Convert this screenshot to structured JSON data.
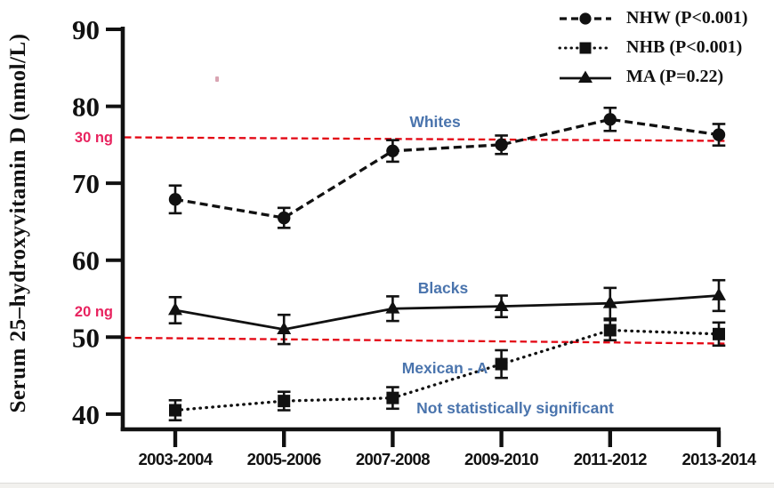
{
  "chart_data": {
    "type": "line",
    "title": "",
    "ylabel": "Serum 25–hydroxyvitamin D (nmol/L)",
    "xlabel": "",
    "ylim": [
      38,
      91
    ],
    "yticks": [
      90,
      80,
      70,
      60,
      50,
      40
    ],
    "grid": false,
    "legend_position": "top-right",
    "categories": [
      "2003-2004",
      "2005-2006",
      "2007-2008",
      "2009-2010",
      "2011-2012",
      "2013-2014"
    ],
    "series": [
      {
        "name": "NHW",
        "legend_label": "NHW (P<0.001)",
        "line_style": "dashed",
        "marker": "circle",
        "color": "#111111",
        "values": [
          67.9,
          65.5,
          74.2,
          75.0,
          78.3,
          76.3
        ],
        "errors": [
          1.8,
          1.3,
          1.4,
          1.2,
          1.5,
          1.4
        ]
      },
      {
        "name": "NHB",
        "legend_label": "NHB (P<0.001)",
        "line_style": "dotted",
        "marker": "square",
        "color": "#111111",
        "values": [
          40.5,
          41.7,
          42.1,
          46.5,
          50.9,
          50.4
        ],
        "errors": [
          1.3,
          1.2,
          1.4,
          1.8,
          1.3,
          1.5
        ]
      },
      {
        "name": "MA",
        "legend_label": "MA (P=0.22)",
        "line_style": "solid",
        "marker": "triangle",
        "color": "#111111",
        "values": [
          53.5,
          51.0,
          53.7,
          54.0,
          54.4,
          55.4
        ],
        "errors": [
          1.7,
          1.9,
          1.6,
          1.4,
          2.0,
          2.0
        ]
      }
    ],
    "reference_lines": [
      {
        "label": "30 ng",
        "value": 75,
        "line_color": "#e30613",
        "label_color": "#e8235f"
      },
      {
        "label": "20 ng",
        "value": 50,
        "line_color": "#e30613",
        "label_color": "#e8235f"
      }
    ],
    "annotations": [
      {
        "text": "Whites",
        "color": "#4a74ad"
      },
      {
        "text": "Blacks",
        "color": "#4a74ad"
      },
      {
        "text": "Mexican - A",
        "color": "#4a74ad"
      },
      {
        "text": "Not statistically significant",
        "color": "#4a74ad"
      }
    ]
  },
  "colors": {
    "axis_black": "#111111",
    "ref_line_red": "#e30613",
    "ref_label_pink": "#e8235f",
    "annotation_blue": "#4a74ad"
  }
}
